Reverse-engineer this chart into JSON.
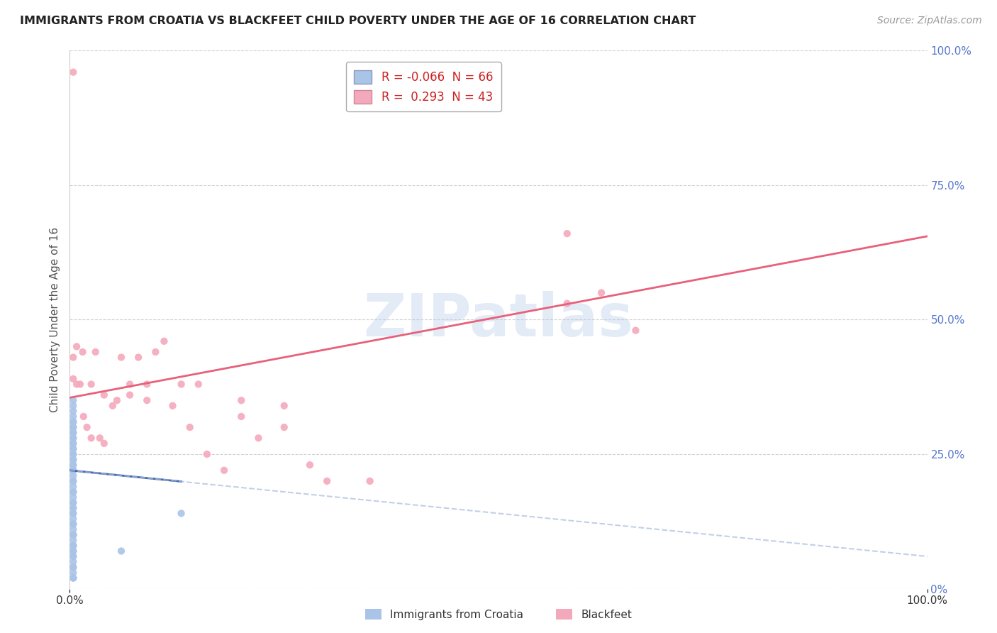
{
  "title": "IMMIGRANTS FROM CROATIA VS BLACKFEET CHILD POVERTY UNDER THE AGE OF 16 CORRELATION CHART",
  "source": "Source: ZipAtlas.com",
  "ylabel": "Child Poverty Under the Age of 16",
  "watermark": "ZIPatlas",
  "croatia_R": -0.066,
  "croatia_N": 66,
  "blackfeet_R": 0.293,
  "blackfeet_N": 43,
  "croatia_color": "#aac4e8",
  "blackfeet_color": "#f4a8bb",
  "croatia_line_color": "#4466aa",
  "blackfeet_line_color": "#e8607a",
  "background_color": "#ffffff",
  "grid_color": "#cccccc",
  "xlim": [
    0.0,
    1.0
  ],
  "ylim": [
    0.0,
    1.0
  ],
  "x_tick_labels": [
    "0.0%",
    "100.0%"
  ],
  "y_tick_labels_right": [
    "0%",
    "25.0%",
    "50.0%",
    "75.0%",
    "100.0%"
  ],
  "y_ticks_right": [
    0.0,
    0.25,
    0.5,
    0.75,
    1.0
  ],
  "blackfeet_trend_start_y": 0.355,
  "blackfeet_trend_end_y": 0.655,
  "croatia_trend_start_y": 0.22,
  "croatia_trend_end_y": 0.06,
  "croatia_scatter_x": [
    0.004,
    0.004,
    0.004,
    0.004,
    0.004,
    0.004,
    0.004,
    0.004,
    0.004,
    0.004,
    0.004,
    0.004,
    0.004,
    0.004,
    0.004,
    0.004,
    0.004,
    0.004,
    0.004,
    0.004,
    0.004,
    0.004,
    0.004,
    0.004,
    0.004,
    0.004,
    0.004,
    0.004,
    0.004,
    0.004,
    0.004,
    0.004,
    0.004,
    0.004,
    0.004,
    0.004,
    0.004,
    0.004,
    0.004,
    0.004,
    0.004,
    0.004,
    0.004,
    0.004,
    0.004,
    0.004,
    0.004,
    0.004,
    0.004,
    0.004,
    0.004,
    0.004,
    0.004,
    0.004,
    0.004,
    0.004,
    0.004,
    0.004,
    0.004,
    0.004,
    0.004,
    0.004,
    0.004,
    0.004,
    0.06,
    0.13
  ],
  "croatia_scatter_y": [
    0.02,
    0.02,
    0.03,
    0.04,
    0.05,
    0.06,
    0.07,
    0.07,
    0.08,
    0.09,
    0.1,
    0.1,
    0.11,
    0.12,
    0.13,
    0.14,
    0.15,
    0.16,
    0.17,
    0.18,
    0.18,
    0.19,
    0.2,
    0.21,
    0.22,
    0.23,
    0.24,
    0.25,
    0.26,
    0.27,
    0.28,
    0.29,
    0.3,
    0.31,
    0.22,
    0.23,
    0.24,
    0.25,
    0.26,
    0.27,
    0.28,
    0.29,
    0.3,
    0.31,
    0.32,
    0.33,
    0.34,
    0.35,
    0.3,
    0.22,
    0.2,
    0.18,
    0.15,
    0.12,
    0.1,
    0.08,
    0.06,
    0.04,
    0.02,
    0.16,
    0.14,
    0.12,
    0.1,
    0.08,
    0.07,
    0.14
  ],
  "blackfeet_scatter_x": [
    0.004,
    0.004,
    0.008,
    0.012,
    0.016,
    0.02,
    0.025,
    0.03,
    0.035,
    0.04,
    0.05,
    0.06,
    0.07,
    0.08,
    0.09,
    0.1,
    0.12,
    0.14,
    0.16,
    0.18,
    0.2,
    0.22,
    0.25,
    0.28,
    0.3,
    0.35,
    0.58,
    0.004,
    0.008,
    0.015,
    0.025,
    0.04,
    0.055,
    0.07,
    0.09,
    0.11,
    0.13,
    0.15,
    0.2,
    0.25,
    0.58,
    0.62,
    0.66
  ],
  "blackfeet_scatter_y": [
    0.96,
    0.39,
    0.38,
    0.38,
    0.32,
    0.3,
    0.28,
    0.44,
    0.28,
    0.27,
    0.34,
    0.43,
    0.38,
    0.43,
    0.38,
    0.44,
    0.34,
    0.3,
    0.25,
    0.22,
    0.32,
    0.28,
    0.3,
    0.23,
    0.2,
    0.2,
    0.66,
    0.43,
    0.45,
    0.44,
    0.38,
    0.36,
    0.35,
    0.36,
    0.35,
    0.46,
    0.38,
    0.38,
    0.35,
    0.34,
    0.53,
    0.55,
    0.48
  ]
}
